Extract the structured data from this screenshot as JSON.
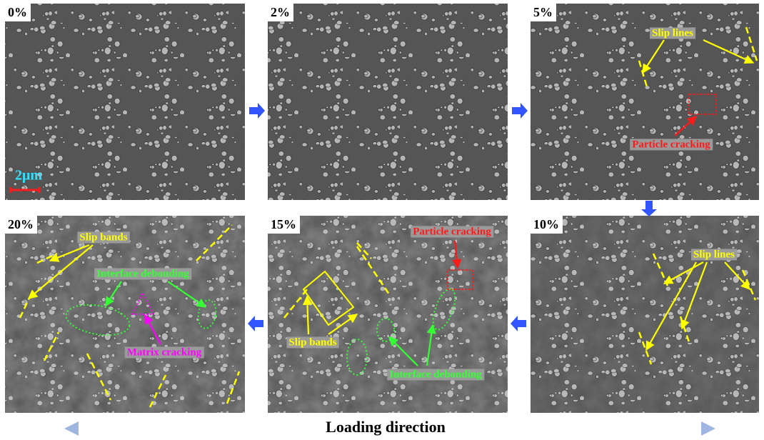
{
  "panels": [
    {
      "label": "0%",
      "scale_bar": "2μm"
    },
    {
      "label": "2%"
    },
    {
      "label": "5%",
      "annotations": [
        "Slip lines",
        "Particle cracking"
      ]
    },
    {
      "label": "10%",
      "annotations": [
        "Slip lines"
      ]
    },
    {
      "label": "15%",
      "annotations": [
        "Particle cracking",
        "Slip bands",
        "Interface debonding"
      ]
    },
    {
      "label": "20%",
      "annotations": [
        "Slip bands",
        "Interface debonding",
        "Matrix cracking"
      ]
    }
  ],
  "caption": "Loading direction"
}
